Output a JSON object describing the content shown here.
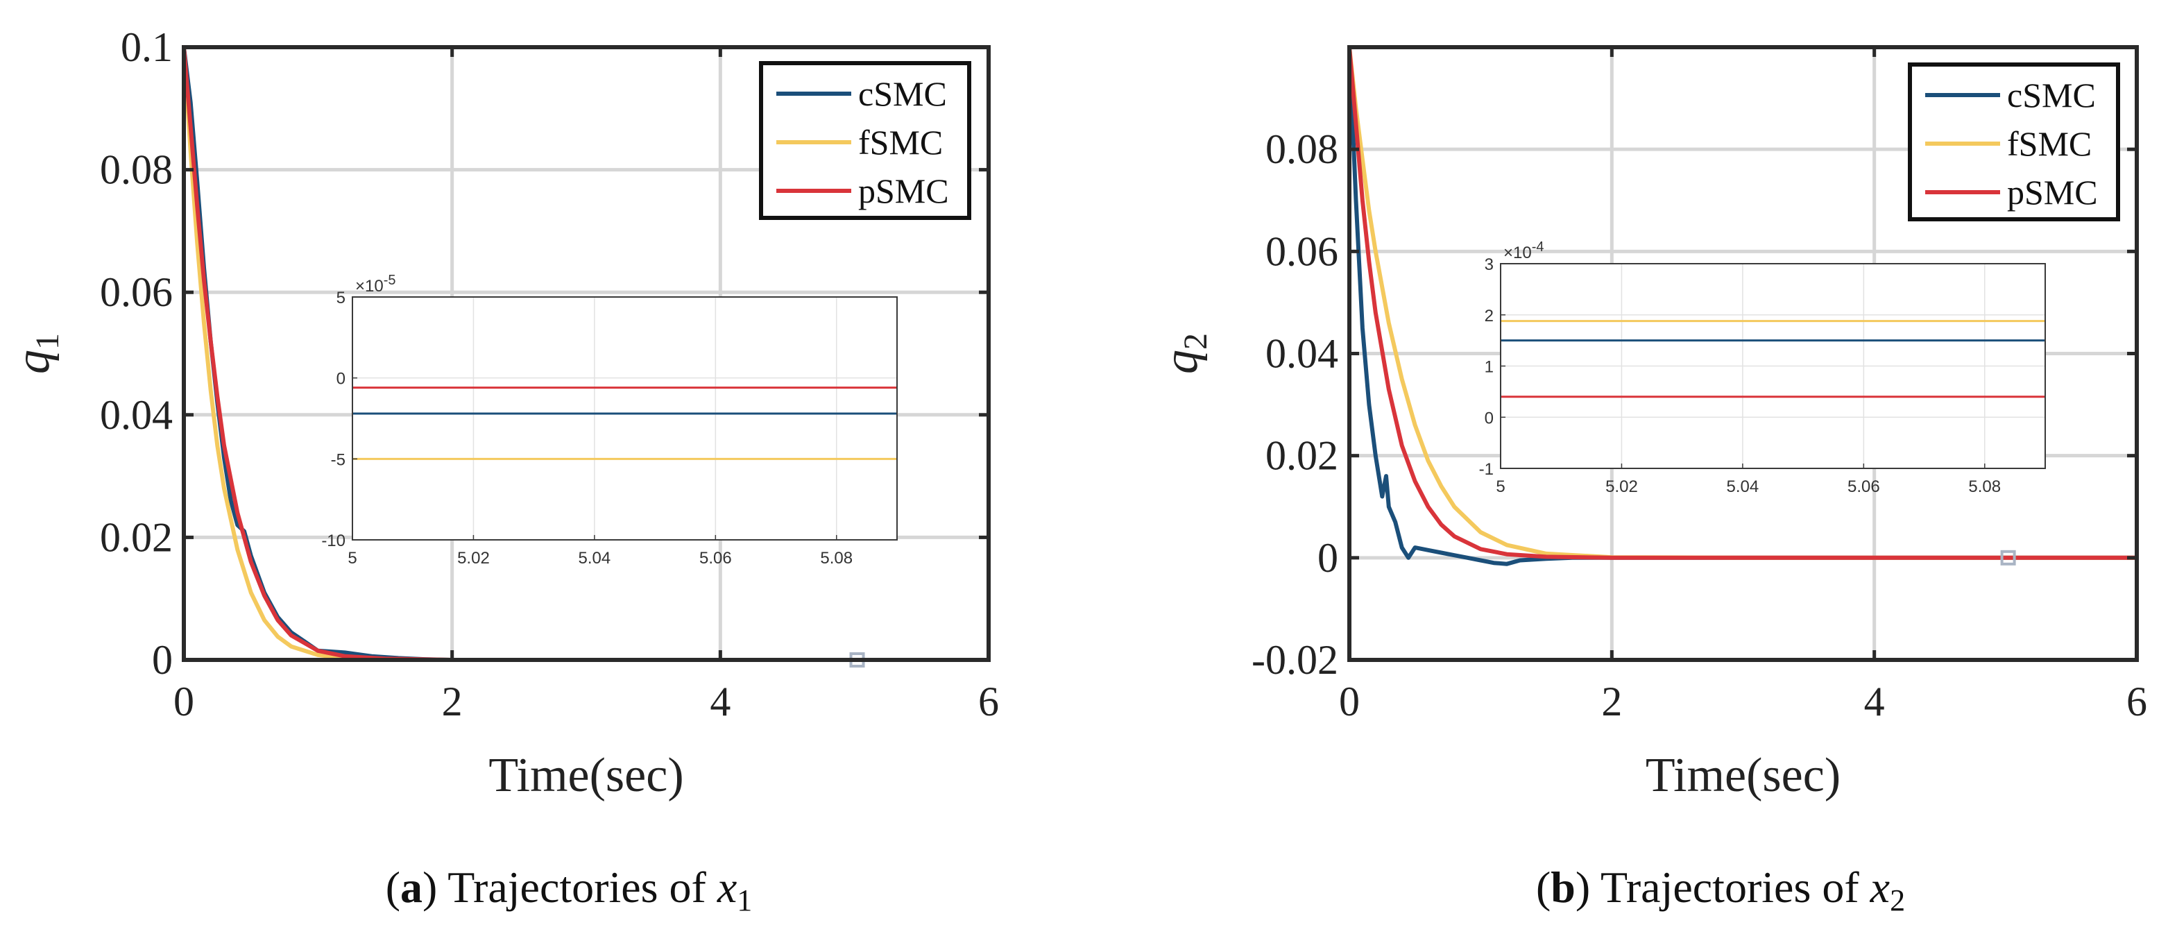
{
  "chart_data": [
    {
      "type": "line",
      "caption_letter": "a",
      "caption_text": "Trajectories of",
      "caption_var": "x",
      "caption_sub": "1",
      "xlabel": "Time(sec)",
      "ylabel": "q",
      "ylabel_sub": "1",
      "xlim": [
        0,
        6
      ],
      "ylim": [
        0,
        0.1
      ],
      "xticks": [
        0,
        2,
        4,
        6
      ],
      "xtick_labels": [
        "0",
        "2",
        "4",
        "6"
      ],
      "yticks": [
        0,
        0.02,
        0.04,
        0.06,
        0.08,
        0.1
      ],
      "ytick_labels": [
        "0",
        "0.02",
        "0.04",
        "0.06",
        "0.08",
        "0.1"
      ],
      "grid": true,
      "legend_position": "top-right",
      "colors": {
        "cSMC": "#1b4f7a",
        "fSMC": "#f4c95d",
        "pSMC": "#d9343a"
      },
      "series": [
        {
          "name": "cSMC",
          "x": [
            0,
            0.05,
            0.1,
            0.15,
            0.2,
            0.25,
            0.3,
            0.35,
            0.4,
            0.45,
            0.5,
            0.6,
            0.7,
            0.8,
            0.9,
            1.0,
            1.2,
            1.4,
            1.6,
            1.8,
            2.0,
            2.5,
            3,
            4,
            5,
            6
          ],
          "y": [
            0.1,
            0.091,
            0.078,
            0.064,
            0.052,
            0.042,
            0.033,
            0.026,
            0.022,
            0.021,
            0.017,
            0.011,
            0.007,
            0.0045,
            0.003,
            0.0015,
            0.0012,
            0.0006,
            0.0003,
            0.0001,
            0,
            0,
            0,
            0,
            0,
            0
          ]
        },
        {
          "name": "fSMC",
          "x": [
            0,
            0.05,
            0.1,
            0.15,
            0.2,
            0.25,
            0.3,
            0.4,
            0.5,
            0.6,
            0.7,
            0.8,
            1.0,
            1.2,
            1.5,
            2,
            3,
            4,
            5,
            6
          ],
          "y": [
            0.1,
            0.083,
            0.068,
            0.055,
            0.044,
            0.035,
            0.028,
            0.018,
            0.011,
            0.0065,
            0.0038,
            0.0022,
            0.0008,
            0.0003,
            0.0001,
            0,
            0,
            0,
            0,
            0
          ]
        },
        {
          "name": "pSMC",
          "x": [
            0,
            0.05,
            0.1,
            0.15,
            0.2,
            0.25,
            0.3,
            0.4,
            0.5,
            0.6,
            0.7,
            0.8,
            1.0,
            1.2,
            1.5,
            2,
            3,
            4,
            5,
            6
          ],
          "y": [
            0.1,
            0.087,
            0.074,
            0.062,
            0.052,
            0.043,
            0.035,
            0.024,
            0.016,
            0.0105,
            0.0065,
            0.004,
            0.0015,
            0.0006,
            0.0002,
            0,
            0,
            0,
            0,
            0
          ]
        }
      ],
      "inset": {
        "exponent_label": "×10",
        "exponent_power": "-5",
        "xlim": [
          5,
          5.09
        ],
        "ylim": [
          -10,
          5
        ],
        "xticks": [
          5,
          5.02,
          5.04,
          5.06,
          5.08
        ],
        "xtick_labels": [
          "5",
          "5.02",
          "5.04",
          "5.06",
          "5.08"
        ],
        "yticks": [
          -10,
          -5,
          0,
          5
        ],
        "ytick_labels": [
          "-10",
          "-5",
          "0",
          "5"
        ],
        "levels": [
          {
            "name": "pSMC",
            "value": -0.6
          },
          {
            "name": "cSMC",
            "value": -2.2
          },
          {
            "name": "fSMC",
            "value": -5.0
          }
        ],
        "marker_x": 5.02,
        "marker_y": 0
      }
    },
    {
      "type": "line",
      "caption_letter": "b",
      "caption_text": "Trajectories of",
      "caption_var": "x",
      "caption_sub": "2",
      "xlabel": "Time(sec)",
      "ylabel": "q",
      "ylabel_sub": "2",
      "xlim": [
        0,
        6
      ],
      "ylim": [
        -0.02,
        0.1
      ],
      "xticks": [
        0,
        2,
        4,
        6
      ],
      "xtick_labels": [
        "0",
        "2",
        "4",
        "6"
      ],
      "yticks": [
        -0.02,
        0,
        0.02,
        0.04,
        0.06,
        0.08
      ],
      "ytick_labels": [
        "-0.02",
        "0",
        "0.02",
        "0.04",
        "0.06",
        "0.08"
      ],
      "grid": true,
      "legend_position": "top-right",
      "colors": {
        "cSMC": "#1b4f7a",
        "fSMC": "#f4c95d",
        "pSMC": "#d9343a"
      },
      "series": [
        {
          "name": "cSMC",
          "x": [
            0,
            0.05,
            0.1,
            0.15,
            0.2,
            0.25,
            0.28,
            0.3,
            0.35,
            0.4,
            0.45,
            0.5,
            0.6,
            0.7,
            0.8,
            0.9,
            1.0,
            1.1,
            1.2,
            1.3,
            1.5,
            1.7,
            2,
            3,
            4,
            5,
            6
          ],
          "y": [
            0.1,
            0.07,
            0.045,
            0.03,
            0.02,
            0.012,
            0.016,
            0.01,
            0.007,
            0.002,
            0.0,
            0.002,
            0.0015,
            0.001,
            0.0005,
            0.0,
            -0.0005,
            -0.001,
            -0.0012,
            -0.0005,
            -0.0002,
            0,
            0,
            0,
            0,
            0,
            0
          ]
        },
        {
          "name": "fSMC",
          "x": [
            0,
            0.05,
            0.1,
            0.15,
            0.2,
            0.3,
            0.4,
            0.5,
            0.6,
            0.7,
            0.8,
            1.0,
            1.2,
            1.5,
            2,
            3,
            4,
            5,
            6
          ],
          "y": [
            0.1,
            0.088,
            0.078,
            0.068,
            0.06,
            0.046,
            0.035,
            0.026,
            0.019,
            0.014,
            0.01,
            0.005,
            0.0025,
            0.0008,
            0.0001,
            0,
            0,
            0,
            0
          ]
        },
        {
          "name": "pSMC",
          "x": [
            0,
            0.05,
            0.1,
            0.15,
            0.2,
            0.3,
            0.4,
            0.5,
            0.6,
            0.7,
            0.8,
            1.0,
            1.2,
            1.5,
            2,
            3,
            4,
            5,
            6
          ],
          "y": [
            0.1,
            0.085,
            0.07,
            0.058,
            0.048,
            0.033,
            0.022,
            0.015,
            0.01,
            0.0065,
            0.0042,
            0.0017,
            0.0007,
            0.0002,
            0,
            0,
            0,
            0,
            0
          ]
        }
      ],
      "inset": {
        "exponent_label": "×10",
        "exponent_power": "-4",
        "xlim": [
          5,
          5.09
        ],
        "ylim": [
          -1,
          3
        ],
        "xticks": [
          5,
          5.02,
          5.04,
          5.06,
          5.08
        ],
        "xtick_labels": [
          "5",
          "5.02",
          "5.04",
          "5.06",
          "5.08"
        ],
        "yticks": [
          -1,
          0,
          1,
          2,
          3
        ],
        "ytick_labels": [
          "-1",
          "0",
          "1",
          "2",
          "3"
        ],
        "levels": [
          {
            "name": "fSMC",
            "value": 1.88
          },
          {
            "name": "cSMC",
            "value": 1.5
          },
          {
            "name": "pSMC",
            "value": 0.4
          }
        ],
        "marker_x": 5.02,
        "marker_y": 0
      }
    }
  ]
}
